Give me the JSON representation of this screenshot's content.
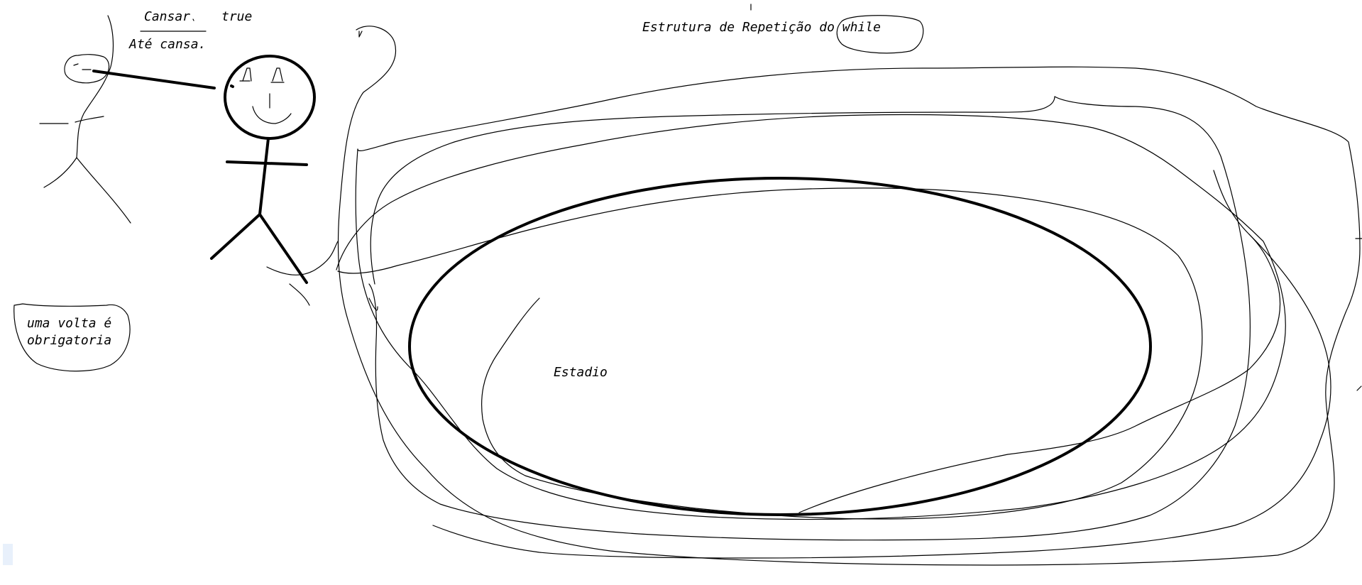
{
  "labels": {
    "title": "Estrutura de Repetição do while",
    "speech_line1_left": "Cansar",
    "speech_line1_right": "true",
    "speech_line2": "Até cansa.",
    "note_line1": "uma volta é",
    "note_line2": "obrigatoria",
    "stadium": "Estadio"
  },
  "colors": {
    "ink": "#000000",
    "background": "#ffffff",
    "selection": "#e8f0fb"
  }
}
